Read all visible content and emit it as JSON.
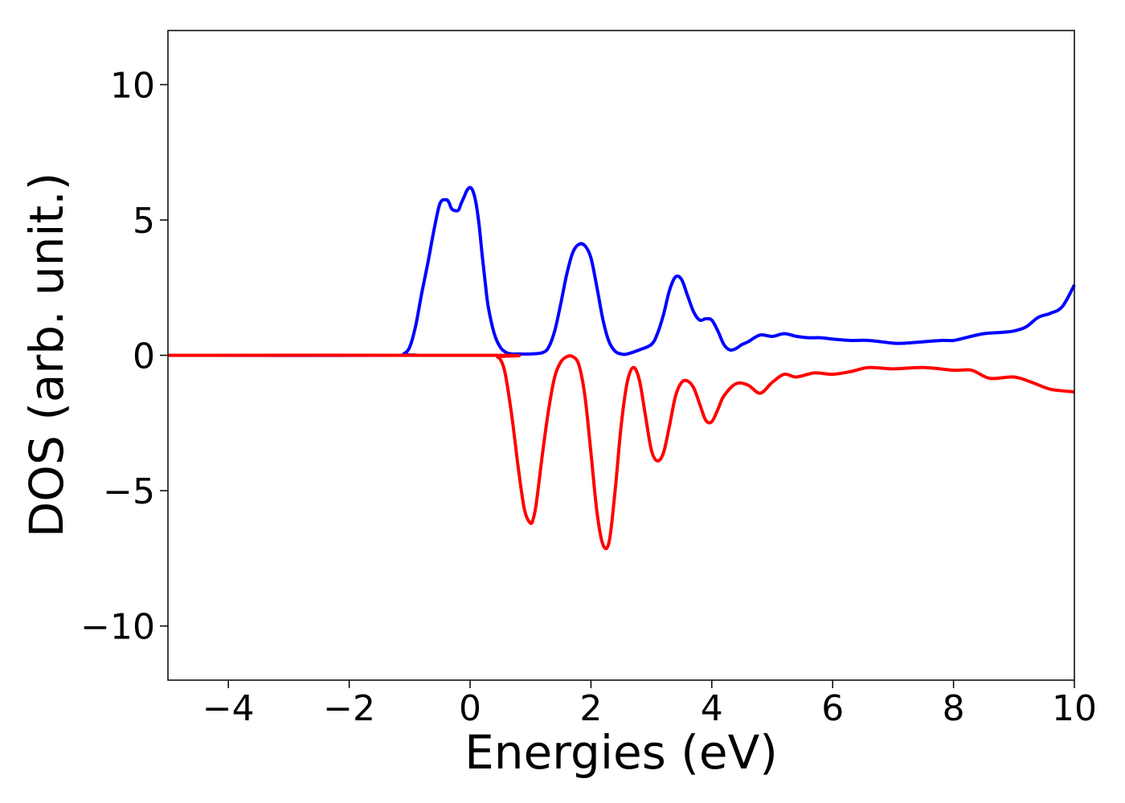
{
  "chart_data": {
    "type": "line",
    "title": "",
    "xlabel": "Energies (eV)",
    "ylabel": "DOS (arb. unit.)",
    "xlim": [
      -5,
      10
    ],
    "ylim": [
      -12,
      12
    ],
    "xticks": [
      -4,
      -2,
      0,
      2,
      4,
      6,
      8,
      10
    ],
    "yticks": [
      -10,
      -5,
      0,
      5,
      10
    ],
    "xtick_labels": [
      "−4",
      "−2",
      "0",
      "2",
      "4",
      "6",
      "8",
      "10"
    ],
    "ytick_labels": [
      "−10",
      "−5",
      "0",
      "5",
      "10"
    ],
    "grid": false,
    "legend": "none",
    "series": [
      {
        "color": "#0000ff",
        "x": [
          -5,
          -1.2,
          -1.1,
          -1.0,
          -0.9,
          -0.8,
          -0.7,
          -0.6,
          -0.5,
          -0.4,
          -0.35,
          -0.3,
          -0.2,
          -0.15,
          -0.1,
          -0.05,
          0.0,
          0.05,
          0.1,
          0.15,
          0.2,
          0.25,
          0.3,
          0.4,
          0.5,
          0.6,
          0.7,
          0.8,
          1.0,
          1.2,
          1.3,
          1.4,
          1.5,
          1.6,
          1.7,
          1.8,
          1.9,
          2.0,
          2.1,
          2.2,
          2.3,
          2.4,
          2.5,
          2.6,
          2.8,
          3.0,
          3.1,
          3.2,
          3.3,
          3.4,
          3.5,
          3.6,
          3.7,
          3.8,
          3.9,
          4.0,
          4.1,
          4.2,
          4.3,
          4.4,
          4.5,
          4.6,
          4.8,
          5.0,
          5.2,
          5.4,
          5.6,
          5.8,
          6.0,
          6.3,
          6.6,
          7.0,
          7.2,
          7.5,
          7.8,
          8.0,
          8.2,
          8.5,
          8.8,
          9.0,
          9.2,
          9.4,
          9.6,
          9.8,
          10.0
        ],
        "y": [
          0,
          0,
          0.05,
          0.3,
          1.1,
          2.3,
          3.4,
          4.6,
          5.6,
          5.75,
          5.65,
          5.4,
          5.35,
          5.6,
          5.85,
          6.1,
          6.2,
          6.05,
          5.6,
          4.8,
          3.7,
          2.7,
          1.8,
          0.8,
          0.3,
          0.1,
          0.05,
          0.05,
          0.05,
          0.1,
          0.3,
          0.9,
          1.9,
          3.0,
          3.8,
          4.1,
          4.05,
          3.6,
          2.5,
          1.3,
          0.5,
          0.15,
          0.05,
          0.05,
          0.2,
          0.4,
          0.8,
          1.5,
          2.4,
          2.9,
          2.8,
          2.2,
          1.6,
          1.3,
          1.35,
          1.3,
          0.9,
          0.4,
          0.2,
          0.25,
          0.4,
          0.5,
          0.75,
          0.7,
          0.8,
          0.7,
          0.65,
          0.65,
          0.6,
          0.55,
          0.55,
          0.45,
          0.45,
          0.5,
          0.55,
          0.55,
          0.65,
          0.8,
          0.85,
          0.9,
          1.05,
          1.4,
          1.55,
          1.8,
          2.6
        ]
      },
      {
        "color": "#ff0000",
        "x": [
          -5,
          0.4,
          0.45,
          0.5,
          0.55,
          0.6,
          0.7,
          0.8,
          0.9,
          1.0,
          1.05,
          1.1,
          1.2,
          1.3,
          1.4,
          1.5,
          1.6,
          1.7,
          1.8,
          1.9,
          2.0,
          2.1,
          2.2,
          2.3,
          2.4,
          2.5,
          2.6,
          2.7,
          2.8,
          2.9,
          3.0,
          3.1,
          3.2,
          3.3,
          3.4,
          3.5,
          3.6,
          3.7,
          3.8,
          3.9,
          4.0,
          4.1,
          4.2,
          4.4,
          4.6,
          4.8,
          5.0,
          5.2,
          5.4,
          5.7,
          6.0,
          6.3,
          6.6,
          7.0,
          7.5,
          8.0,
          8.3,
          8.6,
          9.0,
          9.3,
          9.6,
          10.0
        ],
        "y": [
          0,
          0,
          -0.05,
          -0.15,
          -0.4,
          -0.9,
          -2.4,
          -4.2,
          -5.7,
          -6.2,
          -6.0,
          -5.4,
          -3.6,
          -2.0,
          -0.8,
          -0.25,
          -0.05,
          -0.05,
          -0.35,
          -1.5,
          -3.6,
          -5.8,
          -7.0,
          -6.9,
          -5.0,
          -2.6,
          -1.0,
          -0.45,
          -0.9,
          -2.2,
          -3.5,
          -3.9,
          -3.6,
          -2.6,
          -1.5,
          -1.0,
          -0.95,
          -1.2,
          -1.8,
          -2.4,
          -2.45,
          -2.0,
          -1.5,
          -1.05,
          -1.1,
          -1.4,
          -1.0,
          -0.7,
          -0.8,
          -0.65,
          -0.7,
          -0.6,
          -0.45,
          -0.5,
          -0.45,
          -0.55,
          -0.55,
          -0.85,
          -0.8,
          -1.0,
          -1.25,
          -1.35
        ]
      }
    ]
  }
}
